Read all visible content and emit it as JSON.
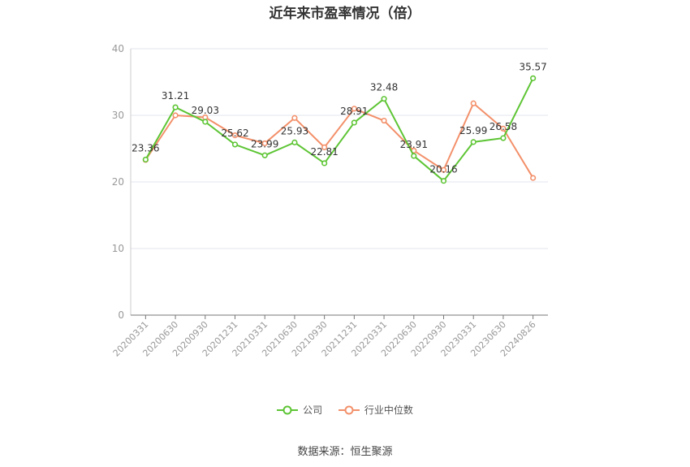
{
  "title": "近年来市盈率情况（倍）",
  "source": "数据来源：恒生聚源",
  "colors": {
    "company": "#5ec535",
    "industry": "#f3906a",
    "grid": "#e3e6ee",
    "axis": "#999999"
  },
  "chart_data": {
    "type": "line",
    "title": "近年来市盈率情况（倍）",
    "categories": [
      "20200331",
      "20200630",
      "20200930",
      "20201231",
      "20210331",
      "20210630",
      "20210930",
      "20211231",
      "20220331",
      "20220630",
      "20220930",
      "20230331",
      "20230630",
      "20240826"
    ],
    "ylim": [
      0,
      40
    ],
    "yticks": [
      0,
      10,
      20,
      30,
      40
    ],
    "grid": true,
    "legend_position": "bottom",
    "series": [
      {
        "name": "公司",
        "color": "#5ec535",
        "labeled": true,
        "values": [
          23.36,
          31.21,
          29.03,
          25.62,
          23.99,
          25.93,
          22.81,
          28.91,
          32.48,
          23.91,
          20.16,
          25.99,
          26.58,
          35.57
        ]
      },
      {
        "name": "行业中位数",
        "color": "#f3906a",
        "labeled": false,
        "values": [
          23.3,
          30.0,
          29.7,
          27.0,
          25.8,
          29.6,
          25.2,
          31.0,
          29.2,
          24.7,
          21.8,
          31.8,
          28.0,
          20.6
        ]
      }
    ]
  }
}
